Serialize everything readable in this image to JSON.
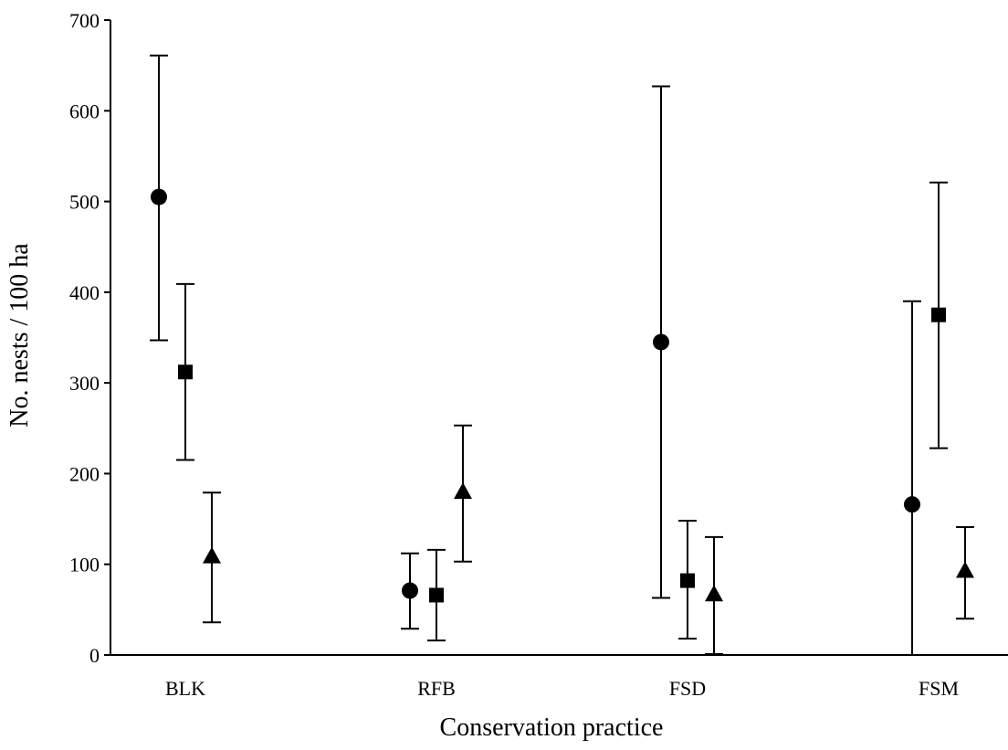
{
  "chart_data": {
    "type": "scatter",
    "title": "",
    "xlabel": "Conservation practice",
    "ylabel": "No. nests / 100 ha",
    "ylim": [
      0,
      700
    ],
    "yticks": [
      "0",
      "100",
      "200",
      "300",
      "400",
      "500",
      "600",
      "700"
    ],
    "categories": [
      "BLK",
      "RFB",
      "FSD",
      "FSM"
    ],
    "grid": false,
    "legend": "none",
    "series": [
      {
        "marker": "circle",
        "values": [
          505,
          71,
          345,
          166
        ],
        "lower": [
          347,
          29,
          63,
          0
        ],
        "upper": [
          661,
          112,
          627,
          390
        ]
      },
      {
        "marker": "square",
        "values": [
          312,
          66,
          82,
          375
        ],
        "lower": [
          215,
          16,
          18,
          228
        ],
        "upper": [
          409,
          116,
          148,
          521
        ]
      },
      {
        "marker": "triangle",
        "values": [
          108,
          179,
          66,
          92
        ],
        "lower": [
          36,
          103,
          1,
          40
        ],
        "upper": [
          179,
          253,
          130,
          141
        ]
      }
    ],
    "colors": {
      "marker": "#000000",
      "axis": "#000000"
    }
  }
}
